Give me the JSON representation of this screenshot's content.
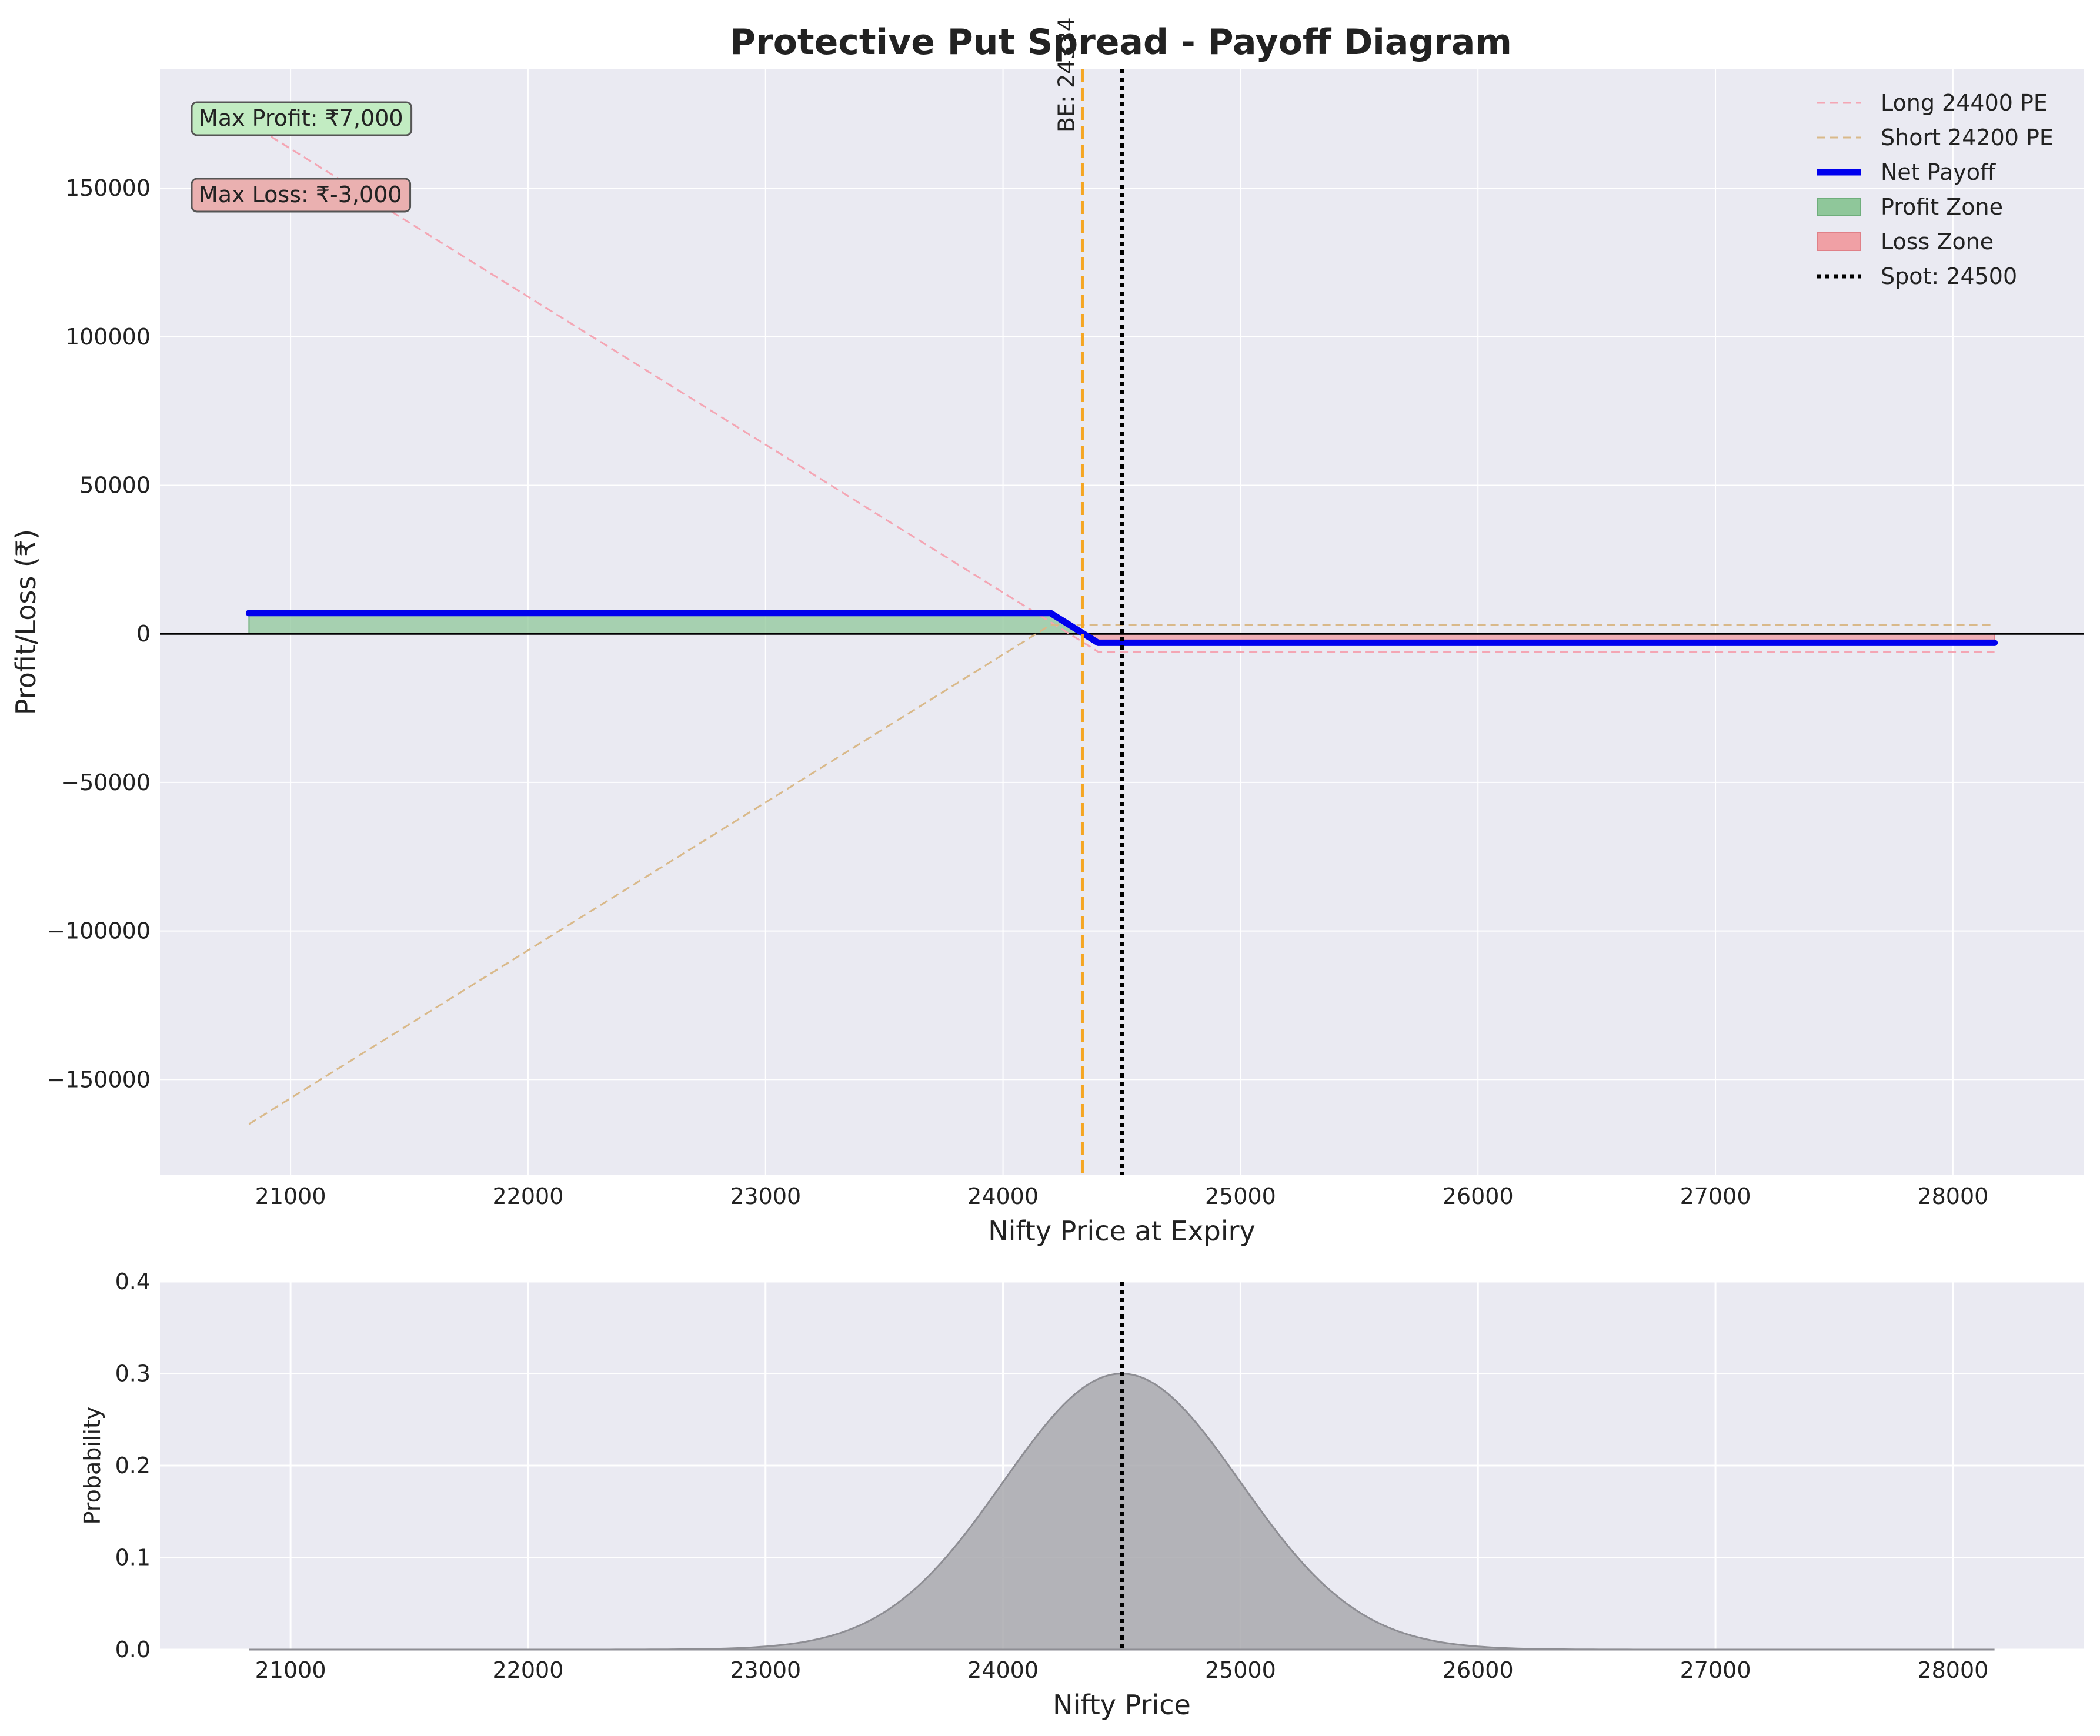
{
  "title": "Protective Put Spread - Payoff Diagram",
  "main_axes": {
    "xlabel": "Nifty Price at Expiry",
    "ylabel": "Profit/Loss (₹)",
    "xlim": [
      20450,
      28550
    ],
    "ylim": [
      -182000,
      190000
    ],
    "xticks": [
      21000,
      22000,
      23000,
      24000,
      25000,
      26000,
      27000,
      28000
    ],
    "yticks": [
      150000,
      100000,
      50000,
      0,
      -50000,
      -100000,
      -150000
    ],
    "ytick_labels": [
      "150000",
      "100000",
      "50000",
      "0",
      "−50000",
      "−100000",
      "−150000"
    ]
  },
  "dist_axes": {
    "xlabel": "Nifty Price",
    "ylabel": "Probability",
    "xlim": [
      20450,
      28550
    ],
    "ylim": [
      0,
      0.4
    ],
    "xticks": [
      21000,
      22000,
      23000,
      24000,
      25000,
      26000,
      27000,
      28000
    ],
    "yticks": [
      0.0,
      0.1,
      0.2,
      0.3,
      0.4
    ],
    "ytick_labels": [
      "0.0",
      "0.1",
      "0.2",
      "0.3",
      "0.4"
    ]
  },
  "annotations": {
    "max_profit": "Max Profit: ₹7,000",
    "max_loss": "Max Loss: ₹-3,000",
    "breakeven": "BE: 24334"
  },
  "legend": {
    "placement": "top-right",
    "entries": [
      {
        "label": "Long 24400 PE",
        "style": "dashed",
        "color": "#f4a6b4"
      },
      {
        "label": "Short 24200 PE",
        "style": "dashed",
        "color": "#d9b98a"
      },
      {
        "label": "Net Payoff",
        "style": "solid-thick",
        "color": "#0000ee"
      },
      {
        "label": "Profit Zone",
        "style": "patch",
        "color": "#8fc79a"
      },
      {
        "label": "Loss Zone",
        "style": "patch",
        "color": "#f0a0a5"
      },
      {
        "label": "Spot: 24500",
        "style": "dotted",
        "color": "#000000"
      }
    ]
  },
  "colors": {
    "axes_bg": "#eaeaf2",
    "grid": "#ffffff",
    "long_put": "#f4a6b4",
    "short_put": "#d9b98a",
    "net": "#0000ee",
    "profit_fill": "#8fc79a",
    "loss_fill": "#f0a0a5",
    "breakeven": "#f5a623",
    "spot": "#000000",
    "distribution": "#a9a9ae",
    "max_profit_box": "#c2ecc2",
    "max_loss_box": "#eab0b0"
  },
  "chart_data": [
    {
      "type": "line",
      "title": "Protective Put Spread - Payoff Diagram",
      "xlabel": "Nifty Price at Expiry",
      "ylabel": "Profit/Loss (₹)",
      "xlim": [
        20450,
        28550
      ],
      "ylim": [
        -182000,
        190000
      ],
      "grid": true,
      "legend_placement": "top-right",
      "series": [
        {
          "name": "Long 24400 PE",
          "style": "dashed",
          "x": [
            20825,
            24400,
            28175
          ],
          "y": [
            172000,
            -6000,
            -6000
          ]
        },
        {
          "name": "Short 24200 PE",
          "style": "dashed",
          "x": [
            20825,
            24200,
            28175
          ],
          "y": [
            -165000,
            3000,
            3000
          ]
        },
        {
          "name": "Net Payoff",
          "style": "solid",
          "x": [
            20825,
            24200,
            24400,
            28175
          ],
          "y": [
            7000,
            7000,
            -3000,
            -3000
          ]
        }
      ],
      "areas": [
        {
          "name": "Profit Zone",
          "x": [
            20825,
            24200,
            24334
          ],
          "y": [
            7000,
            7000,
            0
          ]
        },
        {
          "name": "Loss Zone",
          "x": [
            24334,
            24400,
            28175
          ],
          "y": [
            0,
            -3000,
            -3000
          ]
        }
      ],
      "vlines": [
        {
          "name": "Spot: 24500",
          "x": 24500,
          "style": "dotted"
        },
        {
          "label": "BE: 24334",
          "x": 24334,
          "style": "dashed"
        }
      ],
      "hlines": [
        {
          "y": 0
        }
      ],
      "annotations": [
        "Max Profit: ₹7,000",
        "Max Loss: ₹-3,000"
      ]
    },
    {
      "type": "area",
      "xlabel": "Nifty Price",
      "ylabel": "Probability",
      "xlim": [
        20450,
        28550
      ],
      "ylim": [
        0,
        0.4
      ],
      "grid": true,
      "distribution": {
        "shape": "normal",
        "mean": 24500,
        "std": 500,
        "peak": 0.3
      },
      "x_range": [
        20825,
        28175
      ],
      "vlines": [
        {
          "x": 24500,
          "style": "dotted"
        }
      ]
    }
  ]
}
